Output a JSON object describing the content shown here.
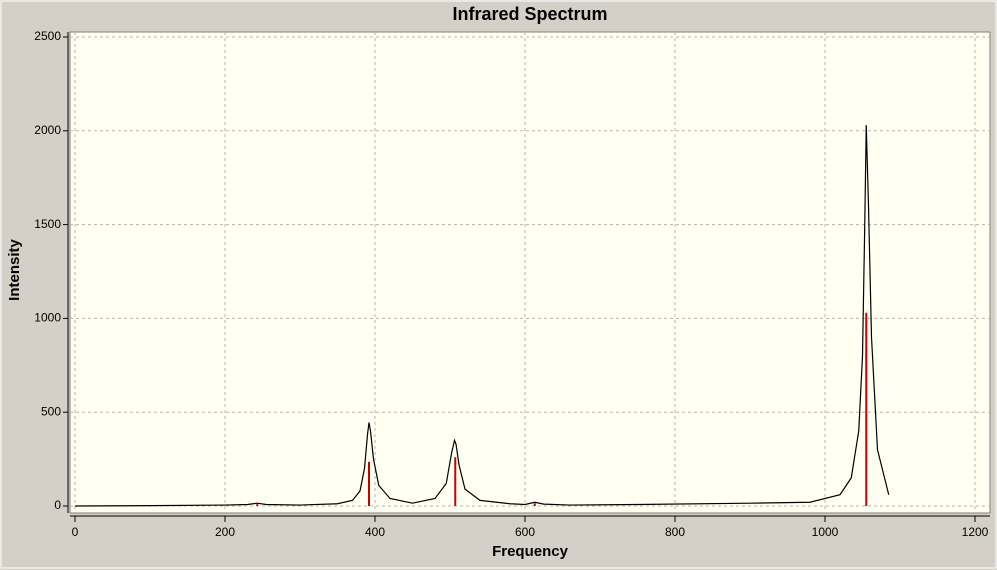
{
  "chart_data": {
    "type": "line",
    "title": "Infrared Spectrum",
    "x_label": "Frequency",
    "y_label": "Intensity",
    "xlim": [
      0,
      1200
    ],
    "ylim": [
      0,
      2500
    ],
    "xticks": [
      0,
      200,
      400,
      600,
      800,
      1000,
      1200
    ],
    "yticks": [
      0,
      500,
      1000,
      1500,
      2000,
      2500
    ],
    "grid": true,
    "series": [
      {
        "type": "line",
        "color": "#000000",
        "x": [
          0,
          100,
          200,
          230,
          243,
          255,
          300,
          350,
          370,
          380,
          386,
          390,
          392,
          394,
          398,
          405,
          420,
          450,
          480,
          495,
          502,
          506,
          508,
          512,
          520,
          540,
          580,
          600,
          613,
          625,
          660,
          750,
          900,
          980,
          1020,
          1035,
          1045,
          1050,
          1053,
          1055,
          1058,
          1062,
          1070,
          1085
        ],
        "values": [
          0,
          2,
          5,
          8,
          15,
          8,
          5,
          12,
          30,
          80,
          200,
          380,
          445,
          400,
          250,
          110,
          40,
          15,
          40,
          120,
          280,
          350,
          330,
          220,
          90,
          30,
          12,
          8,
          20,
          10,
          5,
          8,
          15,
          20,
          60,
          150,
          400,
          800,
          1500,
          2030,
          1600,
          900,
          300,
          60
        ]
      },
      {
        "type": "stick",
        "color": "#cc0000",
        "x": [
          243,
          392,
          507,
          613,
          1055
        ],
        "values": [
          10,
          235,
          260,
          15,
          1030
        ]
      }
    ]
  }
}
